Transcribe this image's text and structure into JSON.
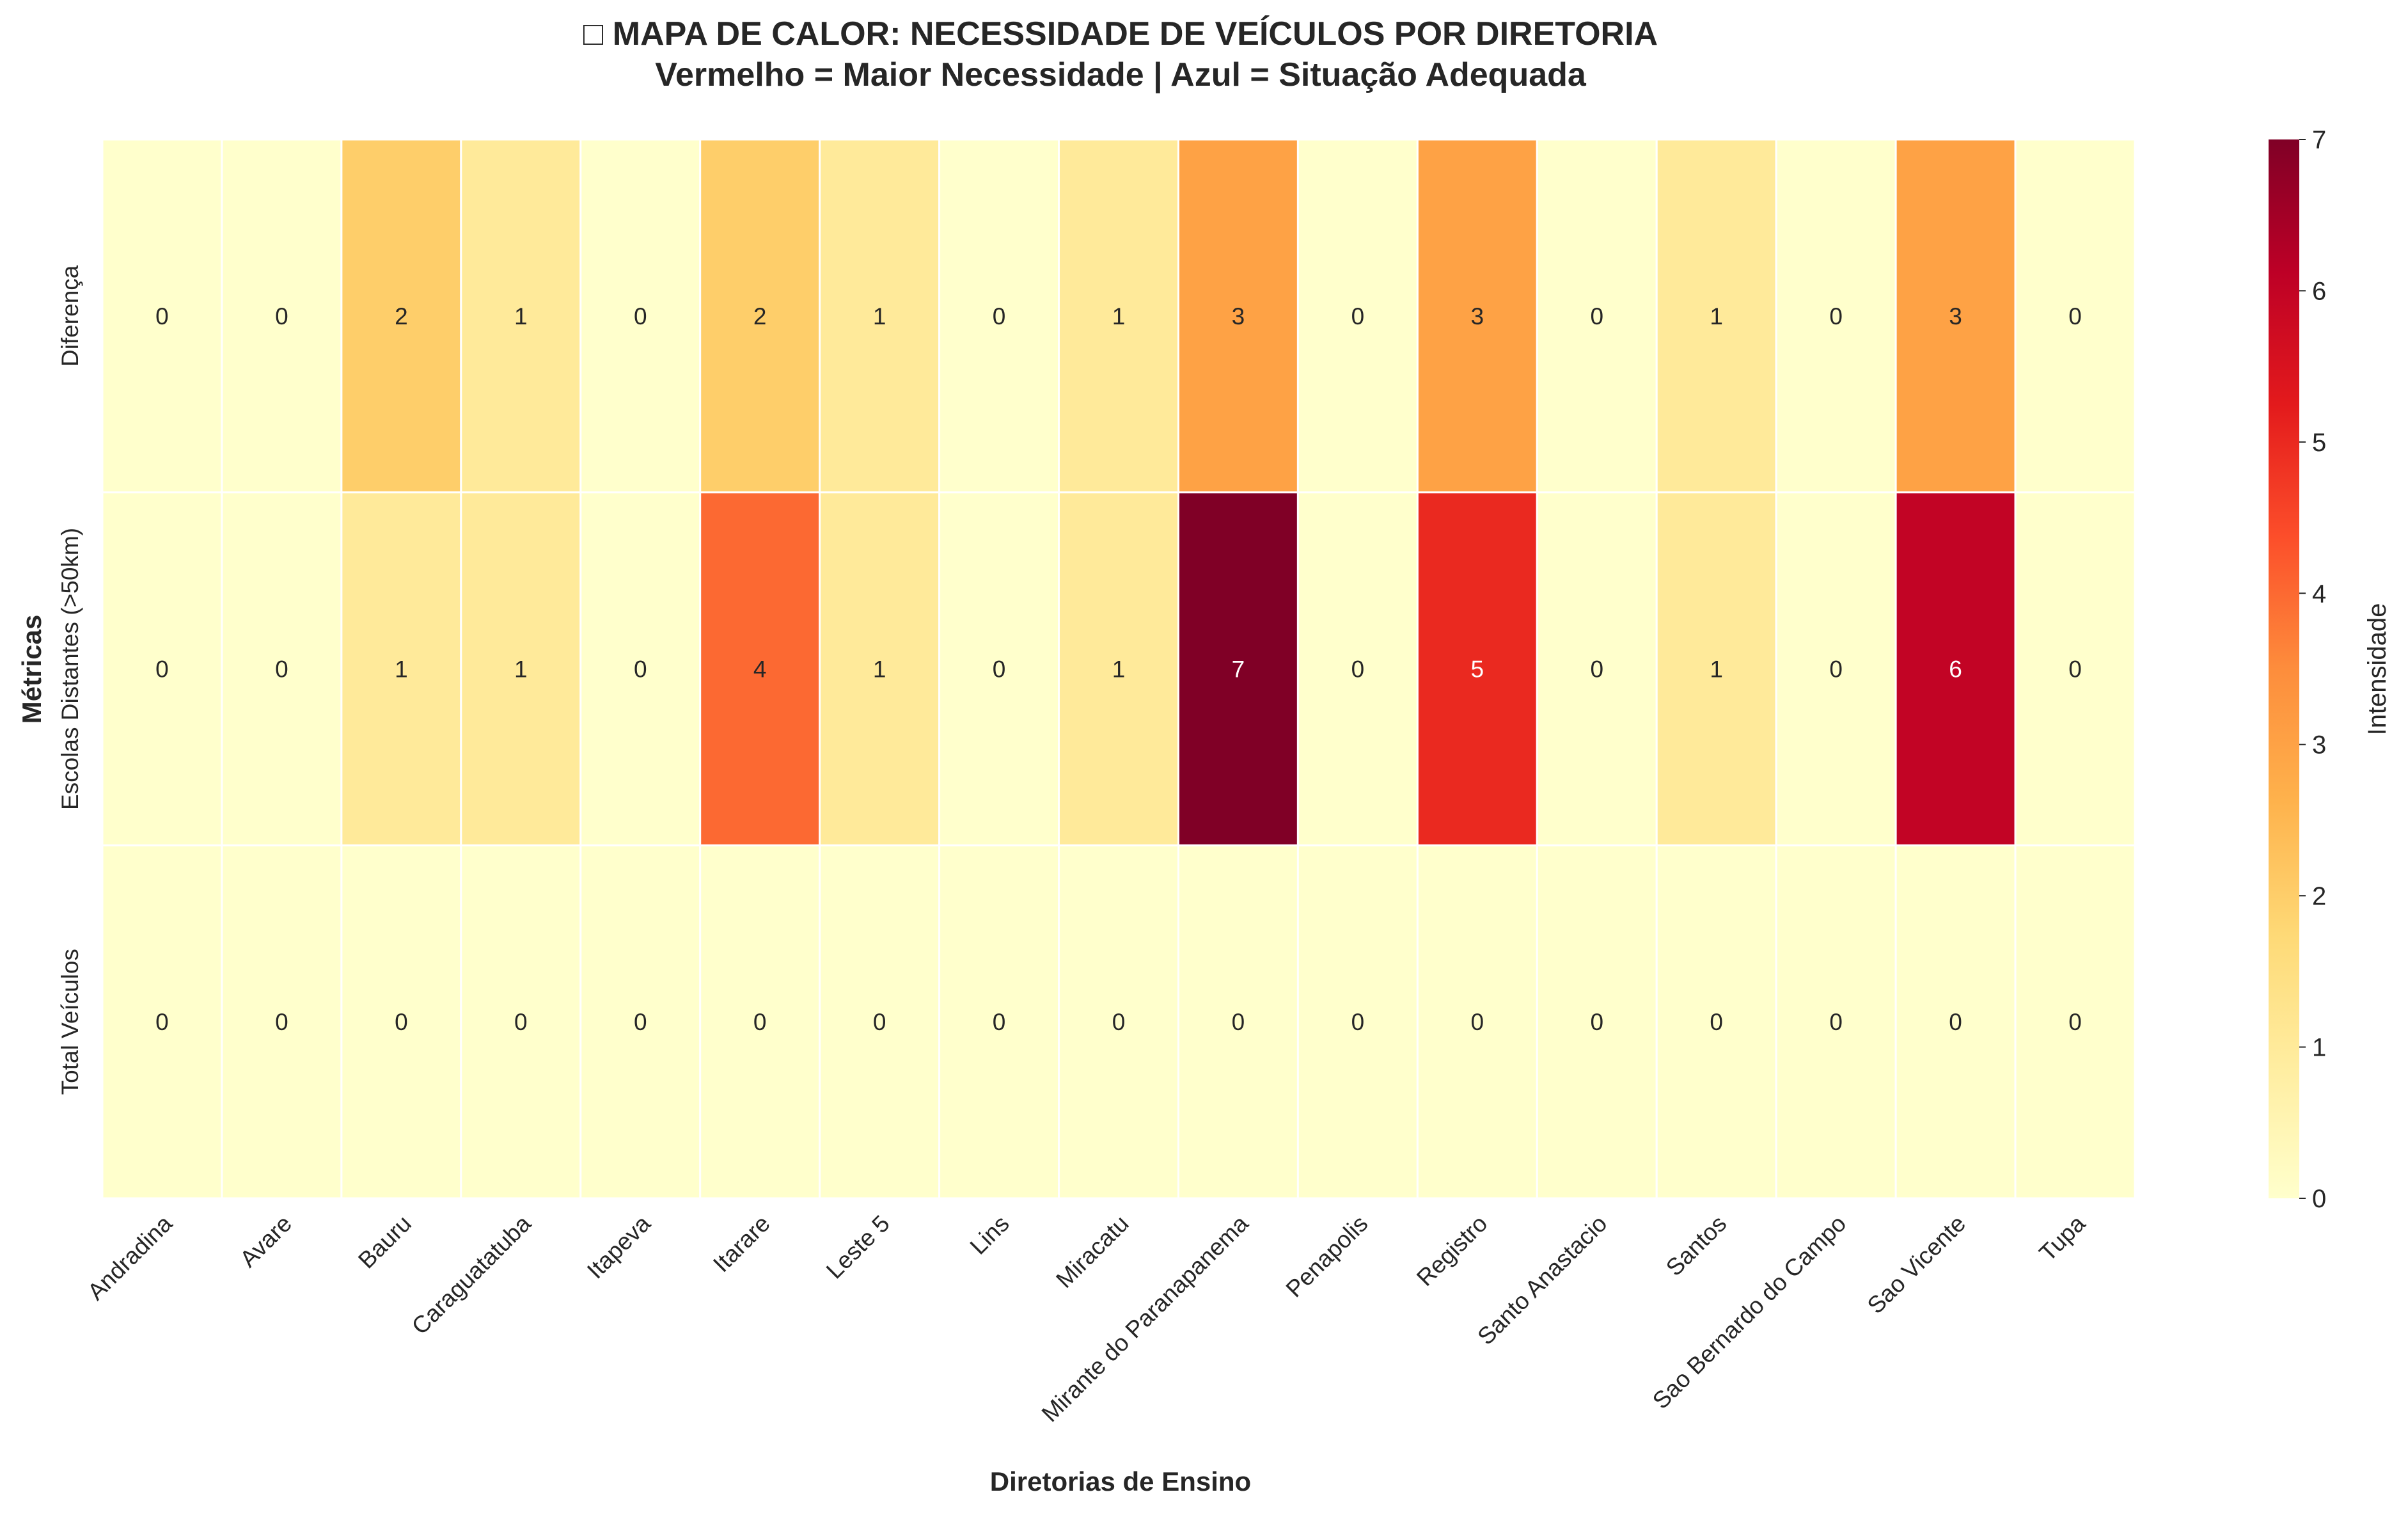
{
  "chart_data": {
    "type": "heatmap",
    "title": "□ MAPA DE CALOR: NECESSIDADE DE VEÍCULOS POR DIRETORIA",
    "subtitle": "Vermelho = Maior Necessidade | Azul = Situação Adequada",
    "xlabel": "Diretorias de Ensino",
    "ylabel": "Métricas",
    "x": [
      "Andradina",
      "Avare",
      "Bauru",
      "Caraguatatuba",
      "Itapeva",
      "Itarare",
      "Leste 5",
      "Lins",
      "Miracatu",
      "Mirante do Paranapanema",
      "Penapolis",
      "Registro",
      "Santo Anastacio",
      "Santos",
      "Sao Bernardo do Campo",
      "Sao Vicente",
      "Tupa"
    ],
    "y": [
      "Diferença",
      "Escolas Distantes (>50km)",
      "Total Veículos"
    ],
    "values": [
      [
        0,
        0,
        2,
        1,
        0,
        2,
        1,
        0,
        1,
        3,
        0,
        3,
        0,
        1,
        0,
        3,
        0
      ],
      [
        0,
        0,
        1,
        1,
        0,
        4,
        1,
        0,
        1,
        7,
        0,
        5,
        0,
        1,
        0,
        6,
        0
      ],
      [
        0,
        0,
        0,
        0,
        0,
        0,
        0,
        0,
        0,
        0,
        0,
        0,
        0,
        0,
        0,
        0,
        0
      ]
    ],
    "colorbar": {
      "label": "Intensidade",
      "range": [
        0,
        7
      ],
      "ticks": [
        0,
        1,
        2,
        3,
        4,
        5,
        6,
        7
      ],
      "colormap": "YlOrRd",
      "colors": [
        "#ffffcc",
        "#ffeda0",
        "#fed976",
        "#feb24c",
        "#fd8d3c",
        "#fc4e2a",
        "#e31a1c",
        "#bd0026",
        "#800026"
      ]
    }
  }
}
